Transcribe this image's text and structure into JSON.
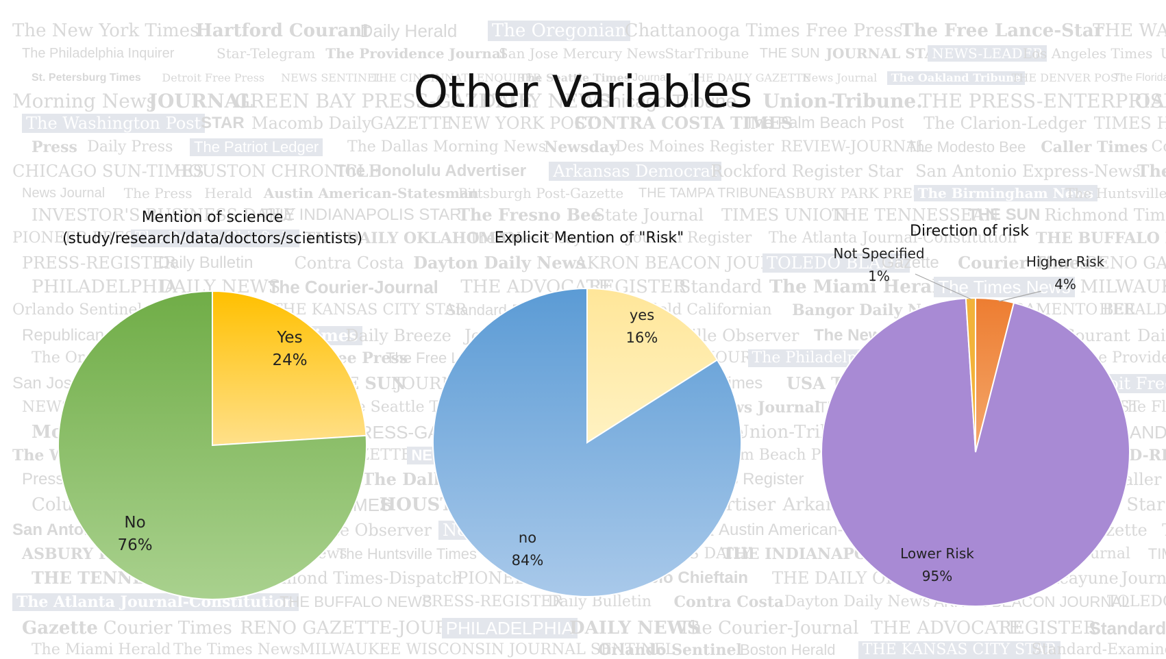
{
  "slide_title": "Other Variables",
  "colors": {
    "science_yes": "#ffc000",
    "science_no": "#70ad47",
    "risk_yes": "#ffe699",
    "risk_no": "#5b9bd5",
    "direction_lower": "#a88ad4",
    "direction_higher": "#ed7d31",
    "direction_unspecified": "#f2b33a",
    "background_masthead_text": "#d8d8d8"
  },
  "background_mastheads": [
    "The New York Times",
    "Hartford Courant",
    "Daily Herald",
    "The Oregonian",
    "Chattanooga Times Free Press",
    "The Free Lance-Star",
    "THE WALL STREET JOURNAL",
    "The Philadelphia Inquirer",
    "Star-Telegram",
    "The Providence Journal",
    "San Jose Mercury News",
    "StarTribune",
    "THE SUN",
    "JOURNAL STAR",
    "NEWS-LEADER",
    "Los Angeles Times",
    "USA TODAY",
    "St. Petersburg Times",
    "Detroit Free Press",
    "NEWS SENTINEL",
    "THE CINCINNATI ENQUIRER",
    "The Seattle Times",
    "Journal",
    "THE DAILY GAZETTE",
    "News Journal",
    "The Oakland Tribune",
    "THE DENVER POST",
    "The Florida Times-Union",
    "Morning News",
    "JOURNAL",
    "GREEN BAY PRESS-GAZETTE",
    "DAILY NEWS",
    "Chicago Tribune",
    "Union-Tribune.",
    "THE PRESS-ENTERPRISE",
    "OAKLAND PRESS",
    "The Washington Post",
    "STAR",
    "Macomb Daily",
    "GAZETTE",
    "NEW YORK POST",
    "CONTRA COSTA TIMES",
    "The Palm Beach Post",
    "The Clarion-Ledger",
    "TIMES HERALD-RECORD",
    "Press",
    "Daily Press",
    "The Patriot Ledger",
    "The Dallas Morning News",
    "Newsday",
    "Des Moines Register",
    "REVIEW-JOURNAL",
    "The Modesto Bee",
    "Caller Times",
    "Columbus Dispatch",
    "CHICAGO SUN-TIMES",
    "HOUSTON CHRONICLE",
    "The Honolulu Advertiser",
    "Arkansas Democrat",
    "Rockford Register Star",
    "San Antonio Express-News",
    "The Charlotte Observer",
    "News Journal",
    "The Press",
    "Herald",
    "Austin American-Statesman",
    "Pittsburgh Post-Gazette",
    "THE TAMPA TRIBUNE",
    "ASBURY PARK PRESS",
    "The Birmingham News",
    "The Huntsville Times",
    "INVESTOR'S BUSINESS DAILY",
    "THE INDIANAPOLIS STAR",
    "The Fresno Bee",
    "State Journal",
    "TIMES UNION",
    "THE TENNESSEAN",
    "THE SUN",
    "Richmond Times-Dispatch",
    "PIONEER PRESS",
    "The Pueblo Chieftain",
    "THE DAILY OKLAHOMAN",
    "The Times-Picayune",
    "Journal Register",
    "The Atlanta Journal-Constitution",
    "THE BUFFALO NEWS",
    "PRESS-REGISTER",
    "Daily Bulletin",
    "Contra Costa",
    "Dayton Daily News",
    "AKRON BEACON JOURNAL",
    "TOLEDO BLADE",
    "Gazette",
    "Courier Times",
    "RENO GAZETTE-JOURNAL",
    "PHILADELPHIA",
    "DAILY NEWS",
    "The Courier-Journal",
    "THE ADVOCATE",
    "REGISTER",
    "Standard",
    "The Miami Herald",
    "The Times News",
    "MILWAUKEE WISCONSIN JOURNAL SENTINEL",
    "Orlando Sentinel",
    "Boston Herald",
    "THE KANSAS CITY STAR",
    "Standard-Examiner",
    "Bakersfield Californian",
    "Bangor Daily News",
    "THE SACRAMENTO BEE",
    "HERALD-LEADER",
    "Republican-American",
    "Quad-City Times",
    "Daily Breeze",
    "Journal Star",
    "The Fayetteville Observer"
  ],
  "chart_data": [
    {
      "type": "pie",
      "title_lines": [
        "Mention of science",
        "(study/research/data/doctors/scientists)"
      ],
      "slices": [
        {
          "label": "Yes",
          "value": 24,
          "value_label": "24%"
        },
        {
          "label": "No",
          "value": 76,
          "value_label": "76%"
        }
      ],
      "start_angle_deg": 0,
      "direction": "clockwise",
      "legend": "none",
      "labels": "inside"
    },
    {
      "type": "pie",
      "title": "Explicit Mention of \"Risk\"",
      "slices": [
        {
          "label": "yes",
          "value": 16,
          "value_label": "16%"
        },
        {
          "label": "no",
          "value": 84,
          "value_label": "84%"
        }
      ],
      "start_angle_deg": 0,
      "direction": "clockwise",
      "legend": "none",
      "labels": "inside"
    },
    {
      "type": "pie",
      "title": "Direction of risk",
      "slices": [
        {
          "label": "Higher Risk",
          "value": 4,
          "value_label": "4%"
        },
        {
          "label": "Lower Risk",
          "value": 95,
          "value_label": "95%"
        },
        {
          "label": "Not Specified",
          "value": 1,
          "value_label": "1%"
        }
      ],
      "start_angle_deg": 0,
      "direction": "clockwise",
      "legend": "none",
      "labels": "inside and callout"
    }
  ]
}
